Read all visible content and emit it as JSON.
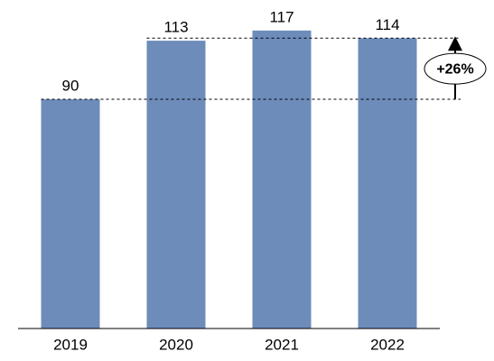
{
  "chart_data": {
    "type": "bar",
    "categories": [
      "2019",
      "2020",
      "2021",
      "2022"
    ],
    "values": [
      90,
      113,
      117,
      114
    ],
    "color": "#6d8cba",
    "annotation": "+26%"
  }
}
